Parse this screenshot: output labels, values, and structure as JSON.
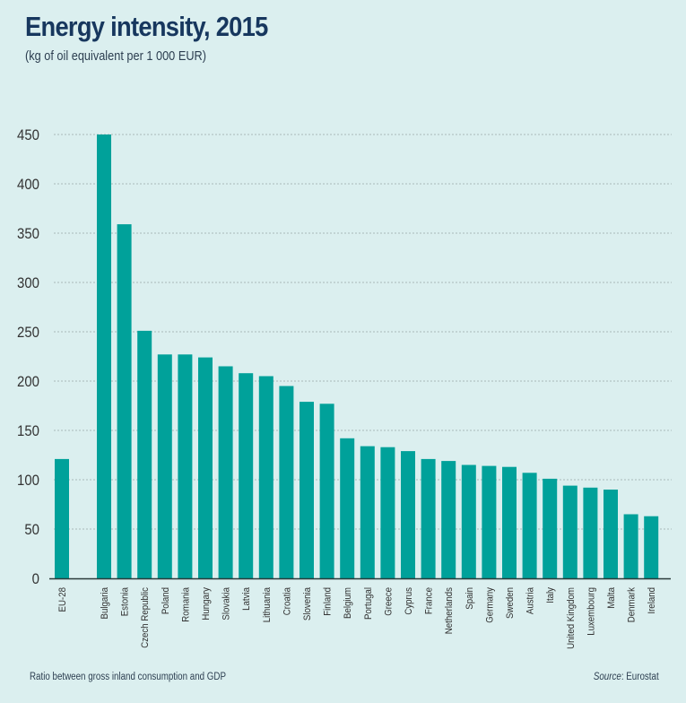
{
  "chart_data": {
    "type": "bar",
    "title": "Energy intensity, 2015",
    "subtitle": "(kg of oil equivalent per 1 000 EUR)",
    "xlabel": "",
    "ylabel": "",
    "ylim": [
      0,
      450
    ],
    "yticks": [
      0,
      50,
      100,
      150,
      200,
      250,
      300,
      350,
      400,
      450
    ],
    "grid": true,
    "bar_color": "#00a19a",
    "categories": [
      "EU-28",
      "Bulgaria",
      "Estonia",
      "Czech Republic",
      "Poland",
      "Romania",
      "Hungary",
      "Slovakia",
      "Latvia",
      "Lithuania",
      "Croatia",
      "Slovenia",
      "Finland",
      "Belgium",
      "Portugal",
      "Greece",
      "Cyprus",
      "France",
      "Netherlands",
      "Spain",
      "Germany",
      "Sweden",
      "Austria",
      "Italy",
      "United Kingdom",
      "Luxembourg",
      "Malta",
      "Denmark",
      "Ireland"
    ],
    "values": [
      121,
      450,
      359,
      251,
      227,
      227,
      224,
      215,
      208,
      205,
      195,
      179,
      177,
      142,
      134,
      133,
      129,
      121,
      119,
      115,
      114,
      113,
      107,
      101,
      94,
      92,
      90,
      65,
      63
    ],
    "gap_after_index": 0
  },
  "footnote": "Ratio between gross inland consumption and GDP",
  "source": {
    "label": "Source",
    "value": ": Eurostat"
  }
}
